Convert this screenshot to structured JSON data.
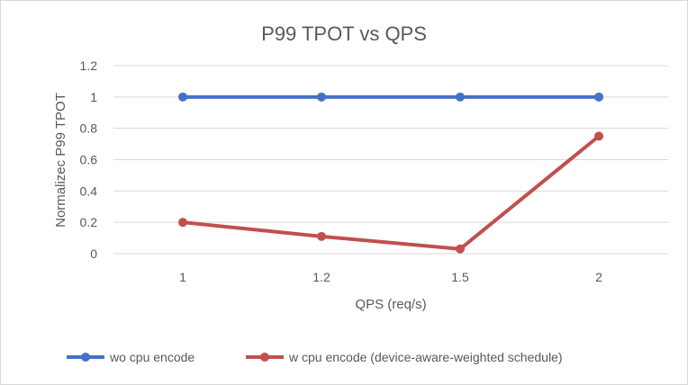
{
  "chart_data": {
    "type": "line",
    "title": "P99 TPOT vs QPS",
    "xlabel": "QPS (req/s)",
    "ylabel": "Normalizec P99 TPOT",
    "categories": [
      "1",
      "1.2",
      "1.5",
      "2"
    ],
    "ylim": [
      0,
      1.2
    ],
    "yticks": [
      "0",
      "0.2",
      "0.4",
      "0.6",
      "0.8",
      "1",
      "1.2"
    ],
    "grid": true,
    "legend_position": "bottom",
    "series": [
      {
        "name": "wo cpu encode",
        "color": "#4472c4",
        "values": [
          1,
          1,
          1,
          1
        ]
      },
      {
        "name": "w cpu encode (device-aware-weighted schedule)",
        "color": "#c0504d",
        "values": [
          0.2,
          0.11,
          0.03,
          0.75
        ]
      }
    ]
  }
}
